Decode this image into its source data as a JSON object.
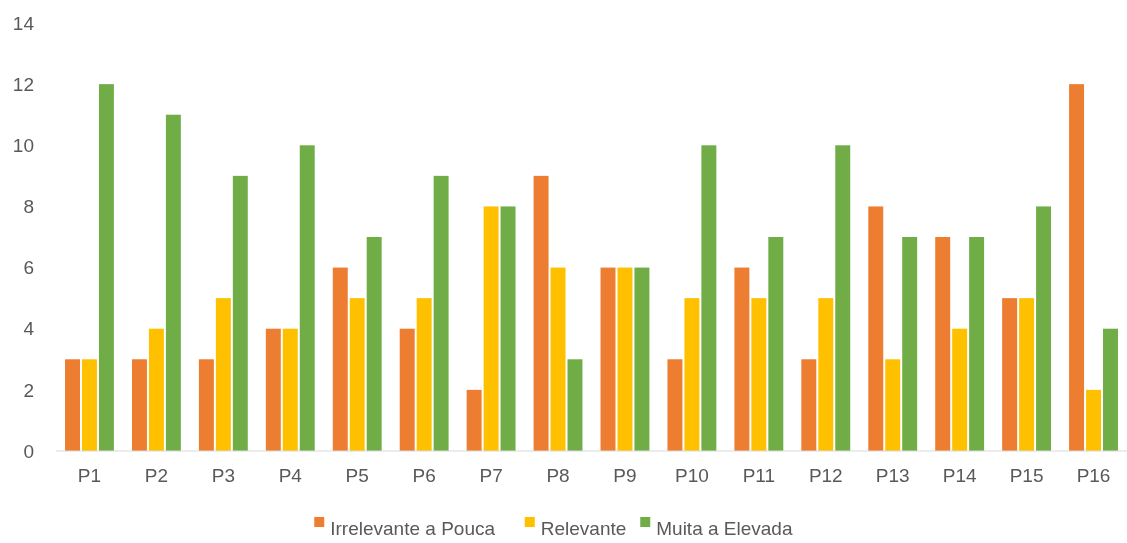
{
  "chart_data": {
    "type": "bar",
    "categories": [
      "P1",
      "P2",
      "P3",
      "P4",
      "P5",
      "P6",
      "P7",
      "P8",
      "P9",
      "P10",
      "P11",
      "P12",
      "P13",
      "P14",
      "P15",
      "P16"
    ],
    "series": [
      {
        "name": "Irrelevante a Pouca",
        "color": "#ed7d31",
        "values": [
          3,
          3,
          3,
          4,
          6,
          4,
          2,
          9,
          6,
          3,
          6,
          3,
          8,
          7,
          5,
          12
        ]
      },
      {
        "name": "Relevante",
        "color": "#ffc000",
        "values": [
          3,
          4,
          5,
          4,
          5,
          5,
          8,
          6,
          6,
          5,
          5,
          5,
          3,
          4,
          5,
          2
        ]
      },
      {
        "name": "Muita a Elevada",
        "color": "#70ad47",
        "values": [
          12,
          11,
          9,
          10,
          7,
          9,
          8,
          3,
          6,
          10,
          7,
          10,
          7,
          7,
          8,
          4
        ]
      }
    ],
    "ylim": [
      0,
      14
    ],
    "yticks": [
      0,
      2,
      4,
      6,
      8,
      10,
      12,
      14
    ],
    "grid": false,
    "legend": "bottom"
  }
}
